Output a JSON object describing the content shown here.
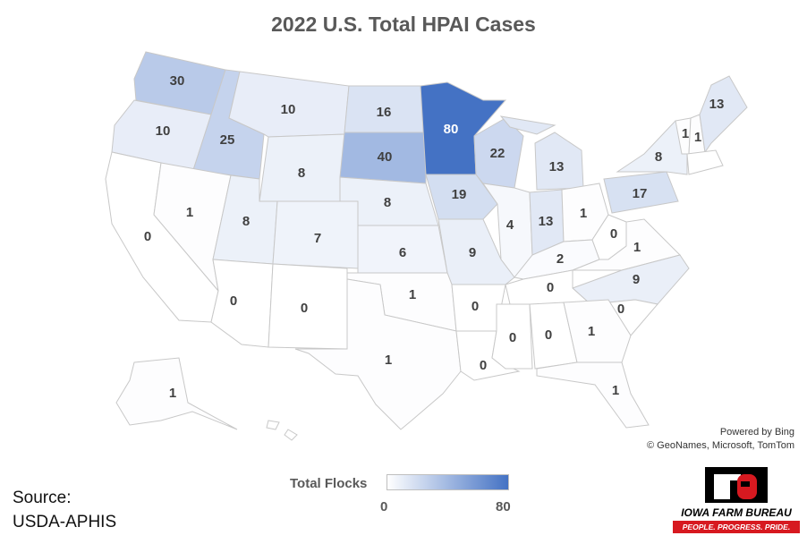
{
  "title": "2022 U.S. Total HPAI Cases",
  "attribution": {
    "line1": "Powered by Bing",
    "line2": "© GeoNames, Microsoft, TomTom"
  },
  "legend": {
    "title": "Total Flocks",
    "min": "0",
    "max": "80",
    "color_min": "#ffffff",
    "color_max": "#4472c4"
  },
  "source": {
    "line1": "Source:",
    "line2": "USDA-APHIS"
  },
  "logo": {
    "name": "IOWA FARM BUREAU",
    "tagline": "PEOPLE. PROGRESS. PRIDE."
  },
  "states": [
    {
      "name": "WA",
      "value": 30
    },
    {
      "name": "OR",
      "value": 10
    },
    {
      "name": "ID",
      "value": 25
    },
    {
      "name": "MT",
      "value": 10
    },
    {
      "name": "WY",
      "value": 8
    },
    {
      "name": "ND",
      "value": 16
    },
    {
      "name": "SD",
      "value": 40
    },
    {
      "name": "NE",
      "value": 8
    },
    {
      "name": "MN",
      "value": 80
    },
    {
      "name": "IA",
      "value": 19
    },
    {
      "name": "WI",
      "value": 22
    },
    {
      "name": "MI",
      "value": 13
    },
    {
      "name": "IL",
      "value": 4
    },
    {
      "name": "IN",
      "value": 13
    },
    {
      "name": "OH",
      "value": 1
    },
    {
      "name": "PA",
      "value": 17
    },
    {
      "name": "NY",
      "value": 8
    },
    {
      "name": "VT",
      "value": 1
    },
    {
      "name": "NH",
      "value": 1
    },
    {
      "name": "ME",
      "value": 13
    },
    {
      "name": "CA",
      "value": 0
    },
    {
      "name": "NV",
      "value": 1
    },
    {
      "name": "UT",
      "value": 8
    },
    {
      "name": "CO",
      "value": 7
    },
    {
      "name": "KS",
      "value": 6
    },
    {
      "name": "MO",
      "value": 9
    },
    {
      "name": "KY",
      "value": 2
    },
    {
      "name": "WV",
      "value": 0
    },
    {
      "name": "VA",
      "value": 1
    },
    {
      "name": "NC",
      "value": 9
    },
    {
      "name": "TN",
      "value": 0
    },
    {
      "name": "SC",
      "value": 0
    },
    {
      "name": "AZ",
      "value": 0
    },
    {
      "name": "NM",
      "value": 0
    },
    {
      "name": "OK",
      "value": 1
    },
    {
      "name": "AR",
      "value": 0
    },
    {
      "name": "MS",
      "value": 0
    },
    {
      "name": "AL",
      "value": 0
    },
    {
      "name": "GA",
      "value": 1
    },
    {
      "name": "TX",
      "value": 1
    },
    {
      "name": "LA",
      "value": 0
    },
    {
      "name": "FL",
      "value": 1
    },
    {
      "name": "AK",
      "value": 1
    }
  ]
}
